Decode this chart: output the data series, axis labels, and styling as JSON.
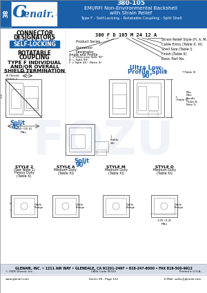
{
  "title_line1": "380-105",
  "title_line2": "EMI/RFI Non-Environmental Backshell",
  "title_line3": "with Strain Relief",
  "title_line4": "Type F - Self-Locking - Rotatable Coupling - Split Shell",
  "header_bg": "#1a5fa8",
  "header_text_color": "#ffffff",
  "logo_text": "Glenair.",
  "page_num": "38",
  "connector_designators_line1": "CONNECTOR",
  "connector_designators_line2": "DESIGNATORS",
  "designator_letters": "A-F-H-L-S",
  "self_locking_bg": "#1a5fa8",
  "self_locking_text": "SELF-LOCKING",
  "rotatable_line1": "ROTATABLE",
  "rotatable_line2": "COUPLING",
  "type_f_line1": "TYPE F INDIVIDUAL",
  "type_f_line2": "AND/OR OVERALL",
  "type_f_line3": "SHIELD TERMINATION",
  "part_number_example": "380 F D 105 M 24 12 A",
  "style2_label1": "STYLE 2",
  "style2_label2": "(See Note 1)",
  "style2_duty1": "Heavy Duty",
  "style2_duty2": "(Table X)",
  "styleA_label": "STYLE A",
  "styleA_duty1": "Medium Duty",
  "styleA_duty2": "(Table XI)",
  "styleM_label": "STYLE M",
  "styleM_duty1": "Medium Duty",
  "styleM_duty2": "(Table XI)",
  "styleD_label": "STYLE D",
  "styleD_duty1": "Medium Duty",
  "styleD_duty2": "(Table XI)",
  "styleD_extra": ".135 (3.4)\nMax",
  "ultra_low_line1": "Ultra Low-",
  "ultra_low_line2": "Profile Split",
  "ultra_low_line3": "90°",
  "ultra_low_color": "#1a5fa8",
  "split_45_line1": "Split",
  "split_45_line2": "45°",
  "split_45_color": "#1a5fa8",
  "split_90_line1": "Split",
  "split_90_line2": "90°",
  "split_90_color": "#1a5fa8",
  "footer_company": "GLENAIR, INC. • 1211 AIR WAY • GLENDALE, CA 91201-2497 • 818-247-6000 • FAX 818-500-9912",
  "footer_website": "www.glenair.com",
  "footer_series": "Series 38 - Page 122",
  "footer_email": "E-Mail: sales@glenair.com",
  "footer_copyright": "© 2005 Glenair, Inc.",
  "cage_code": "CAGE Code 06324",
  "printed": "Printed in U.S.A.",
  "bg_color": "#ffffff",
  "footer_bg": "#d4dce8",
  "blue": "#1a5fa8",
  "gray_line": "#555555",
  "light_gray": "#aaaaaa",
  "watermark": "#c5d5e8",
  "product_series_label": "Product Series",
  "connector_label": "Connector\nDesignator",
  "angle_line1": "Angle and Profile",
  "angle_line2": "C = Ultra-Low Split 90°",
  "angle_line3": "D = Split 90°",
  "angle_line4": "F = Split 45° (Note 4)",
  "strain_label": "Strain Relief Style (H, A, M, D)",
  "cable_label": "Cable Entry (Table X, XI)",
  "shell_label": "Shell Size (Table I)",
  "finish_label": "Finish (Table II)",
  "basic_label": "Basic Part No.",
  "a_thread": "A Thread\n(Table I)",
  "e_typ": "E Typ\n(Table I)",
  "f_table": "F\n(Table III)",
  "g_table": "G (Table XI)",
  "h_dim": "H",
  "m_dim": "M",
  "l_table": "L\n(Table II)",
  "table_ii": "*(Table II)",
  "table_iii": "(Table III)",
  "max_wire": "Max\nWire\nBundle\n(Table B,\nNote 1)",
  "dim_j": "J\n(Table\nXII)",
  "note1_00": "1.00 (25.4)\nMax",
  "w_dim": "W",
  "x_dim": "X",
  "cable_flange": "Cable\nFlange",
  "v_dim": "V",
  "y_dim": "Y",
  "z_dim": "Z"
}
